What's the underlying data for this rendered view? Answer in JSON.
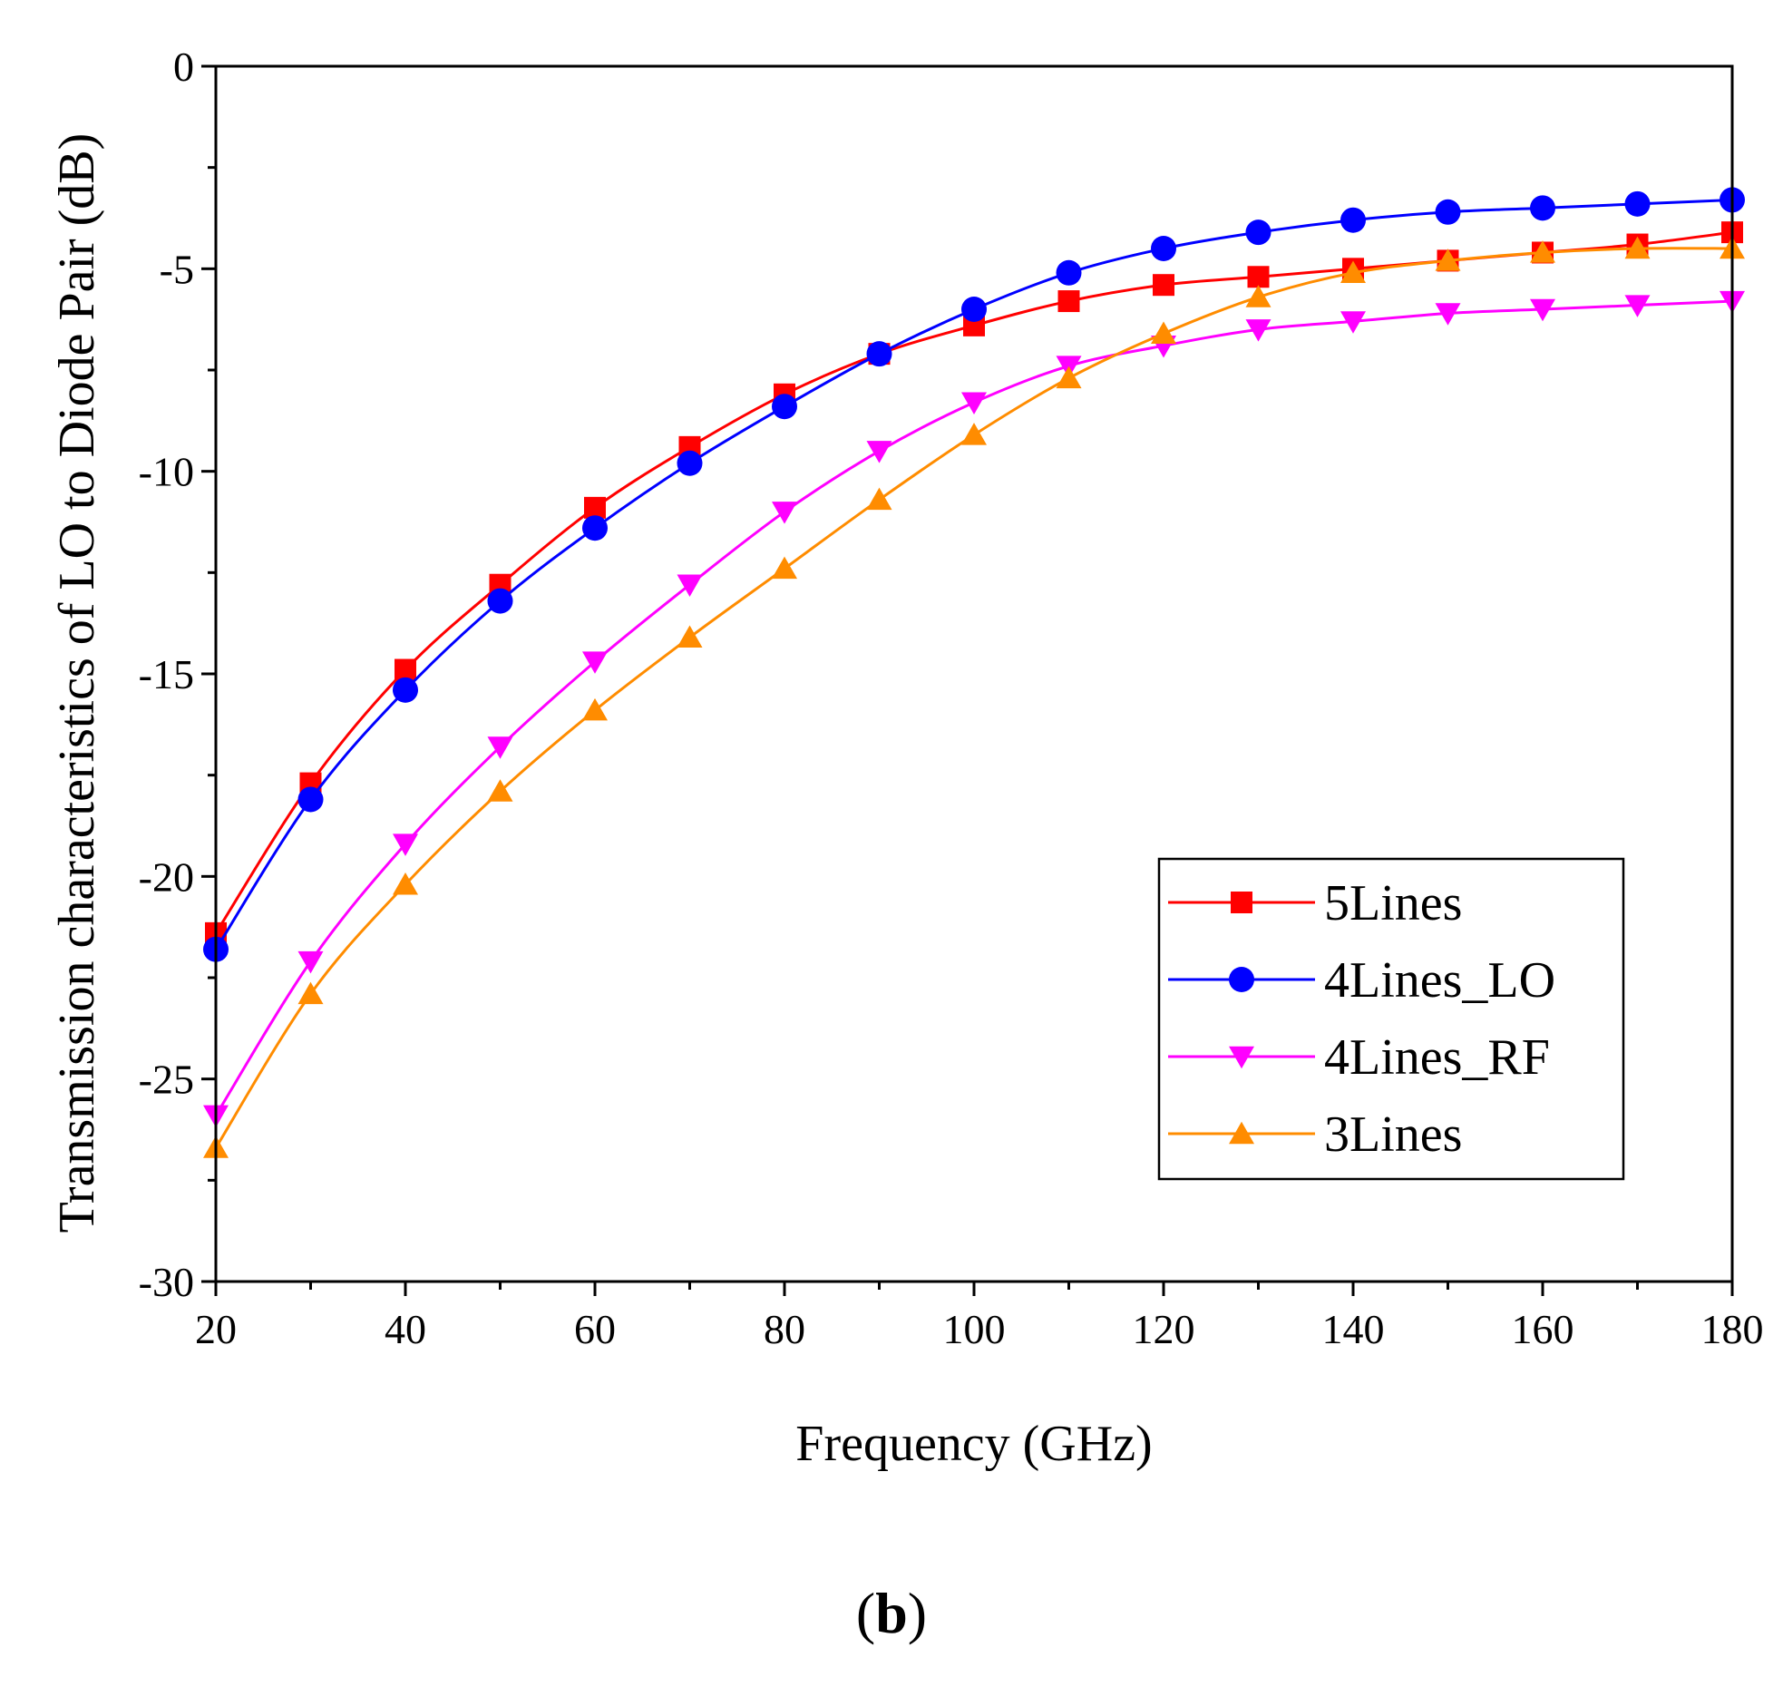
{
  "chart_data": {
    "type": "line",
    "title": "",
    "xlabel": "Frequency (GHz)",
    "ylabel": "Transmission characteristics of LO to Diode Pair (dB)",
    "xlim": [
      20,
      180
    ],
    "ylim": [
      -30,
      0
    ],
    "xticks": [
      20,
      40,
      60,
      80,
      100,
      120,
      140,
      160,
      180
    ],
    "yticks": [
      0,
      -5,
      -10,
      -15,
      -20,
      -25,
      -30
    ],
    "legend_position": "lower-right",
    "panel_label": {
      "open": "(",
      "bold": "b",
      "close": ")"
    },
    "x": [
      20,
      30,
      40,
      50,
      60,
      70,
      80,
      90,
      100,
      110,
      120,
      130,
      140,
      150,
      160,
      170,
      180
    ],
    "series": [
      {
        "name": "5Lines",
        "color": "#ff0000",
        "marker": "square",
        "values": [
          -21.4,
          -17.7,
          -14.9,
          -12.8,
          -10.9,
          -9.4,
          -8.1,
          -7.1,
          -6.4,
          -5.8,
          -5.4,
          -5.2,
          -5.0,
          -4.8,
          -4.6,
          -4.4,
          -4.1
        ]
      },
      {
        "name": "4Lines_LO",
        "color": "#0000ff",
        "marker": "circle",
        "values": [
          -21.8,
          -18.1,
          -15.4,
          -13.2,
          -11.4,
          -9.8,
          -8.4,
          -7.1,
          -6.0,
          -5.1,
          -4.5,
          -4.1,
          -3.8,
          -3.6,
          -3.5,
          -3.4,
          -3.3
        ]
      },
      {
        "name": "4Lines_RF",
        "color": "#ff00ff",
        "marker": "triangle-down",
        "values": [
          -25.9,
          -22.1,
          -19.2,
          -16.8,
          -14.7,
          -12.8,
          -11.0,
          -9.5,
          -8.3,
          -7.4,
          -6.9,
          -6.5,
          -6.3,
          -6.1,
          -6.0,
          -5.9,
          -5.8
        ]
      },
      {
        "name": "3Lines",
        "color": "#ff8c00",
        "marker": "triangle-up",
        "values": [
          -26.7,
          -22.9,
          -20.2,
          -17.9,
          -15.9,
          -14.1,
          -12.4,
          -10.7,
          -9.1,
          -7.7,
          -6.6,
          -5.7,
          -5.1,
          -4.8,
          -4.6,
          -4.5,
          -4.5
        ]
      }
    ]
  }
}
